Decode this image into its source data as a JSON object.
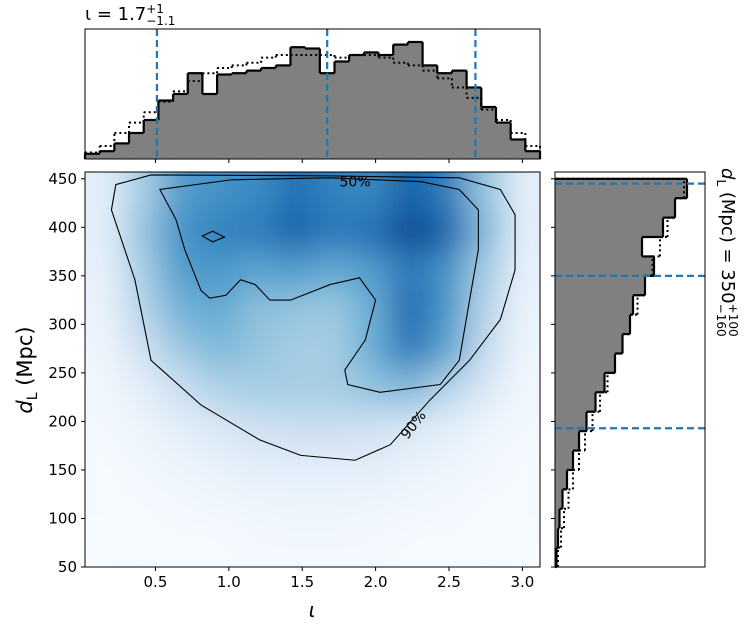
{
  "chart_data": [
    {
      "type": "heatmap",
      "x_label": "ι",
      "y_label": {
        "main": "d",
        "sub": "L",
        "rest": " (Mpc)"
      },
      "xlim": [
        0.02,
        3.12
      ],
      "ylim": [
        50,
        457
      ],
      "xticks": [
        {
          "value": 0.5,
          "label": "0.5"
        },
        {
          "value": 1.0,
          "label": "1.0"
        },
        {
          "value": 1.5,
          "label": "1.5"
        },
        {
          "value": 2.0,
          "label": "2.0"
        },
        {
          "value": 2.5,
          "label": "2.5"
        },
        {
          "value": 3.0,
          "label": "3.0"
        }
      ],
      "yticks": [
        50,
        100,
        150,
        200,
        250,
        300,
        350,
        400,
        450
      ],
      "x_bins": [
        0.02,
        0.28,
        0.54,
        0.8,
        1.06,
        1.32,
        1.58,
        1.84,
        2.1,
        2.36,
        2.62,
        2.88,
        3.12
      ],
      "y_bins": [
        50,
        91,
        131,
        172,
        213,
        254,
        294,
        335,
        376,
        416,
        457
      ],
      "density": [
        [
          0,
          0.01,
          0.01,
          0.01,
          0.02,
          0.02,
          0.02,
          0.02,
          0.01,
          0.01,
          0.01,
          0
        ],
        [
          0.01,
          0.01,
          0.02,
          0.03,
          0.04,
          0.05,
          0.05,
          0.04,
          0.03,
          0.02,
          0.01,
          0.01
        ],
        [
          0.01,
          0.03,
          0.05,
          0.07,
          0.1,
          0.1,
          0.1,
          0.1,
          0.07,
          0.05,
          0.03,
          0.01
        ],
        [
          0.02,
          0.05,
          0.1,
          0.15,
          0.2,
          0.22,
          0.22,
          0.2,
          0.15,
          0.1,
          0.05,
          0.02
        ],
        [
          0.03,
          0.1,
          0.22,
          0.32,
          0.35,
          0.35,
          0.35,
          0.4,
          0.45,
          0.3,
          0.15,
          0.03
        ],
        [
          0.05,
          0.2,
          0.38,
          0.45,
          0.4,
          0.35,
          0.35,
          0.5,
          0.72,
          0.55,
          0.25,
          0.05
        ],
        [
          0.06,
          0.3,
          0.48,
          0.52,
          0.42,
          0.4,
          0.38,
          0.5,
          0.78,
          0.6,
          0.3,
          0.06
        ],
        [
          0.08,
          0.35,
          0.58,
          0.6,
          0.55,
          0.58,
          0.52,
          0.58,
          0.72,
          0.62,
          0.35,
          0.08
        ],
        [
          0.1,
          0.4,
          0.62,
          0.68,
          0.7,
          0.8,
          0.72,
          0.75,
          0.9,
          0.8,
          0.45,
          0.1
        ],
        [
          0.1,
          0.35,
          0.58,
          0.62,
          0.65,
          0.75,
          0.68,
          0.66,
          0.8,
          0.7,
          0.4,
          0.1
        ]
      ],
      "colormap": [
        "#f7fbff",
        "#deebf7",
        "#c6dbef",
        "#9ecae1",
        "#6baed6",
        "#4292c6",
        "#2171b5",
        "#08519c",
        "#08306b"
      ],
      "contours": [
        {
          "label": "50%",
          "x": [
            0.53,
            1.02,
            1.69,
            2.31,
            2.57,
            2.7,
            2.7,
            2.64,
            2.57,
            2.44,
            2.03,
            1.81,
            1.79,
            1.93,
            2.0,
            1.89,
            1.69,
            1.42,
            1.28,
            1.18,
            1.08,
            0.98,
            0.87,
            0.81,
            0.7,
            0.64
          ],
          "y": [
            439,
            449,
            451,
            447,
            439,
            418,
            377,
            325,
            263,
            238,
            230,
            238,
            253,
            284,
            325,
            348,
            341,
            325,
            325,
            341,
            346,
            330,
            327,
            335,
            377,
            408
          ]
        },
        {
          "x": [
            0.82,
            0.89,
            0.97,
            0.89
          ],
          "y": [
            391,
            396,
            390,
            385
          ]
        },
        {
          "label": "90%",
          "x": [
            0.2,
            0.36,
            0.47,
            0.81,
            1.21,
            1.49,
            1.86,
            2.1,
            2.37,
            2.64,
            2.85,
            2.95,
            2.95,
            2.85,
            2.57,
            1.69,
            0.47,
            0.23
          ],
          "y": [
            418,
            346,
            263,
            217,
            181,
            165,
            160,
            176,
            222,
            263,
            305,
            356,
            413,
            439,
            451,
            453,
            454,
            444
          ]
        }
      ],
      "contour_color": "#000000"
    },
    {
      "type": "histogram",
      "orientation": "vertical",
      "title": {
        "main": "ι = 1.7",
        "upper": "+1",
        "lower": "−1.1"
      },
      "xlim": [
        0.02,
        3.12
      ],
      "ylim": [
        0,
        1
      ],
      "bins": [
        0.02,
        0.12,
        0.22,
        0.32,
        0.42,
        0.52,
        0.62,
        0.72,
        0.82,
        0.92,
        1.02,
        1.12,
        1.22,
        1.32,
        1.42,
        1.52,
        1.62,
        1.72,
        1.82,
        1.92,
        2.02,
        2.12,
        2.22,
        2.32,
        2.42,
        2.52,
        2.62,
        2.72,
        2.82,
        2.92,
        3.02,
        3.12
      ],
      "series": [
        {
          "style": "filled",
          "color": "#808080",
          "values": [
            0.04,
            0.06,
            0.12,
            0.2,
            0.3,
            0.45,
            0.5,
            0.66,
            0.5,
            0.65,
            0.66,
            0.68,
            0.7,
            0.72,
            0.86,
            0.85,
            0.66,
            0.75,
            0.8,
            0.82,
            0.8,
            0.88,
            0.9,
            0.72,
            0.66,
            0.68,
            0.55,
            0.4,
            0.28,
            0.15,
            0.06
          ]
        },
        {
          "style": "dotted",
          "color": "#000000",
          "values": [
            0.05,
            0.1,
            0.2,
            0.28,
            0.36,
            0.44,
            0.52,
            0.6,
            0.66,
            0.7,
            0.72,
            0.74,
            0.78,
            0.8,
            0.8,
            0.8,
            0.8,
            0.78,
            0.8,
            0.8,
            0.78,
            0.74,
            0.72,
            0.68,
            0.62,
            0.55,
            0.47,
            0.38,
            0.3,
            0.2,
            0.1
          ]
        }
      ],
      "quantiles": [
        0.51,
        1.67,
        2.68
      ],
      "quantile_color": "#1f77b4"
    },
    {
      "type": "histogram",
      "orientation": "horizontal",
      "title": {
        "main": "d",
        "sub": "L",
        "rest": " (Mpc) = 350",
        "upper": "+100",
        "lower": "−160"
      },
      "xlim": [
        0,
        1
      ],
      "ylim": [
        50,
        457
      ],
      "bins": [
        50,
        70,
        90,
        110,
        130,
        150,
        170,
        190,
        210,
        230,
        250,
        270,
        290,
        310,
        330,
        350,
        370,
        390,
        410,
        430,
        450
      ],
      "series": [
        {
          "style": "filled",
          "color": "#808080",
          "values": [
            0.01,
            0.02,
            0.03,
            0.05,
            0.08,
            0.12,
            0.16,
            0.21,
            0.27,
            0.33,
            0.4,
            0.45,
            0.5,
            0.52,
            0.6,
            0.66,
            0.58,
            0.72,
            0.8,
            0.88
          ]
        },
        {
          "style": "dotted",
          "color": "#000000",
          "values": [
            0.02,
            0.04,
            0.06,
            0.09,
            0.12,
            0.16,
            0.2,
            0.25,
            0.3,
            0.35,
            0.4,
            0.45,
            0.5,
            0.55,
            0.6,
            0.65,
            0.7,
            0.75,
            0.8,
            0.86
          ]
        }
      ],
      "quantiles": [
        193,
        350,
        445
      ],
      "quantile_color": "#1f77b4"
    }
  ]
}
